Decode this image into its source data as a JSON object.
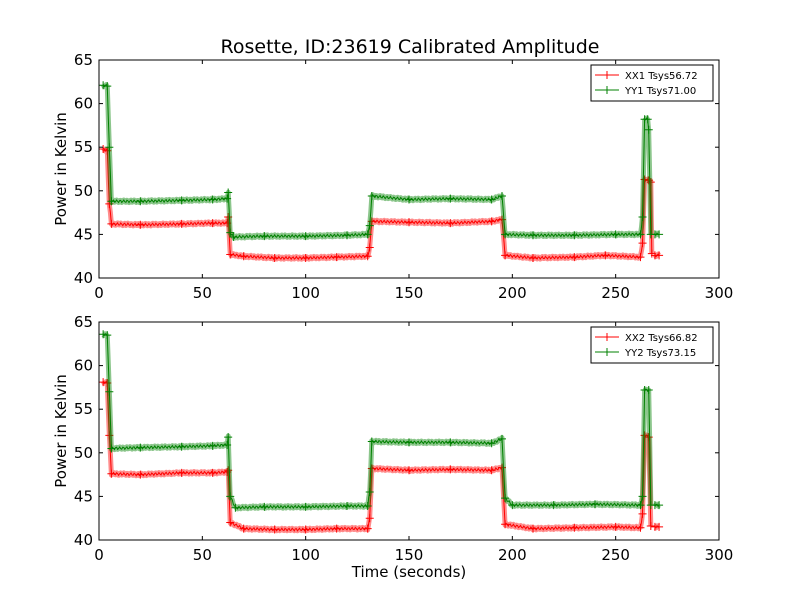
{
  "title": "Rosette, ID:23619 Calibrated Amplitude",
  "chart_data": [
    {
      "type": "line",
      "title": "Rosette, ID:23619 Calibrated Amplitude",
      "xlabel": "",
      "ylabel": "Power in Kelvin",
      "xlim": [
        0,
        300
      ],
      "ylim": [
        40,
        65
      ],
      "xticks": [
        0,
        50,
        100,
        150,
        200,
        250,
        300
      ],
      "yticks": [
        40,
        45,
        50,
        55,
        60,
        65
      ],
      "legend_position": "top-right",
      "series": [
        {
          "name": "XX1 Tsys56.72",
          "color": "#ff0000",
          "segments": [
            [
              [
                2,
                54.8
              ],
              [
                4,
                54.6
              ],
              [
                5,
                48.5
              ],
              [
                6,
                46.2
              ],
              [
                20,
                46.1
              ],
              [
                40,
                46.2
              ],
              [
                55,
                46.3
              ],
              [
                62,
                46.3
              ],
              [
                62.5,
                47
              ],
              [
                63.5,
                42.7
              ],
              [
                70,
                42.5
              ],
              [
                85,
                42.3
              ],
              [
                100,
                42.3
              ],
              [
                115,
                42.4
              ],
              [
                130,
                42.5
              ],
              [
                131,
                43.5
              ],
              [
                132,
                46.5
              ],
              [
                150,
                46.4
              ],
              [
                170,
                46.3
              ],
              [
                190,
                46.5
              ],
              [
                195,
                46.7
              ],
              [
                196.5,
                42.6
              ],
              [
                210,
                42.3
              ],
              [
                230,
                42.4
              ],
              [
                245,
                42.6
              ],
              [
                262,
                42.4
              ],
              [
                263,
                44
              ],
              [
                264,
                51.3
              ],
              [
                266,
                51.2
              ],
              [
                267,
                51
              ],
              [
                267.5,
                42.8
              ]
            ],
            [
              [
                269,
                42.6
              ],
              [
                271,
                42.6
              ]
            ]
          ]
        },
        {
          "name": "YY1 Tsys71.00",
          "color": "#008000",
          "segments": [
            [
              [
                2,
                62.1
              ],
              [
                4,
                62
              ],
              [
                5,
                55
              ],
              [
                6,
                48.8
              ],
              [
                20,
                48.8
              ],
              [
                40,
                48.9
              ],
              [
                55,
                49
              ],
              [
                62,
                49.1
              ],
              [
                62.5,
                49.8
              ],
              [
                63.5,
                45.2
              ],
              [
                65,
                44.7
              ],
              [
                80,
                44.8
              ],
              [
                100,
                44.8
              ],
              [
                120,
                44.9
              ],
              [
                130,
                45
              ],
              [
                131,
                46
              ],
              [
                132,
                49.4
              ],
              [
                150,
                49
              ],
              [
                170,
                49.1
              ],
              [
                190,
                49
              ],
              [
                195,
                49.4
              ],
              [
                196.5,
                45
              ],
              [
                210,
                44.9
              ],
              [
                230,
                44.9
              ],
              [
                250,
                45
              ],
              [
                262,
                45
              ],
              [
                263,
                47
              ],
              [
                264,
                58.2
              ],
              [
                265.5,
                58.2
              ],
              [
                266,
                57
              ],
              [
                267,
                45
              ]
            ],
            [
              [
                269,
                45
              ],
              [
                271,
                45
              ]
            ]
          ]
        }
      ]
    },
    {
      "type": "line",
      "title": "",
      "xlabel": "Time (seconds)",
      "ylabel": "Power in Kelvin",
      "xlim": [
        0,
        300
      ],
      "ylim": [
        40,
        65
      ],
      "xticks": [
        0,
        50,
        100,
        150,
        200,
        250,
        300
      ],
      "yticks": [
        40,
        45,
        50,
        55,
        60,
        65
      ],
      "legend_position": "top-right",
      "series": [
        {
          "name": "XX2 Tsys66.82",
          "color": "#ff0000",
          "segments": [
            [
              [
                2,
                58.1
              ],
              [
                4,
                58
              ],
              [
                5,
                52
              ],
              [
                6,
                47.6
              ],
              [
                20,
                47.5
              ],
              [
                40,
                47.7
              ],
              [
                55,
                47.7
              ],
              [
                62,
                47.8
              ],
              [
                62.5,
                48
              ],
              [
                63.5,
                42
              ],
              [
                70,
                41.3
              ],
              [
                85,
                41.2
              ],
              [
                100,
                41.2
              ],
              [
                115,
                41.3
              ],
              [
                130,
                41.3
              ],
              [
                131,
                42.5
              ],
              [
                132,
                48.2
              ],
              [
                150,
                48
              ],
              [
                170,
                48.1
              ],
              [
                190,
                48
              ],
              [
                195,
                48.3
              ],
              [
                196.5,
                41.8
              ],
              [
                210,
                41.3
              ],
              [
                230,
                41.4
              ],
              [
                250,
                41.5
              ],
              [
                262,
                41.4
              ],
              [
                263,
                43
              ],
              [
                264,
                52
              ],
              [
                266,
                51.8
              ],
              [
                267,
                41.6
              ]
            ],
            [
              [
                269,
                41.5
              ],
              [
                271,
                41.5
              ]
            ]
          ]
        },
        {
          "name": "YY2 Tsys73.15",
          "color": "#008000",
          "segments": [
            [
              [
                2,
                63.6
              ],
              [
                4,
                63.5
              ],
              [
                5,
                57
              ],
              [
                6,
                50.5
              ],
              [
                20,
                50.6
              ],
              [
                40,
                50.7
              ],
              [
                55,
                50.8
              ],
              [
                62,
                50.9
              ],
              [
                62.5,
                51.8
              ],
              [
                63.5,
                45
              ],
              [
                66,
                43.7
              ],
              [
                80,
                43.8
              ],
              [
                100,
                43.8
              ],
              [
                120,
                43.9
              ],
              [
                130,
                43.9
              ],
              [
                131,
                45.5
              ],
              [
                132,
                51.3
              ],
              [
                150,
                51.2
              ],
              [
                170,
                51.2
              ],
              [
                190,
                51.1
              ],
              [
                195,
                51.6
              ],
              [
                196.5,
                44.8
              ],
              [
                200,
                44
              ],
              [
                220,
                44
              ],
              [
                240,
                44.1
              ],
              [
                262,
                44
              ],
              [
                263,
                45
              ],
              [
                264,
                57.2
              ],
              [
                266,
                57.2
              ],
              [
                267,
                44
              ]
            ],
            [
              [
                269,
                44
              ],
              [
                271,
                44
              ]
            ]
          ]
        }
      ]
    }
  ]
}
